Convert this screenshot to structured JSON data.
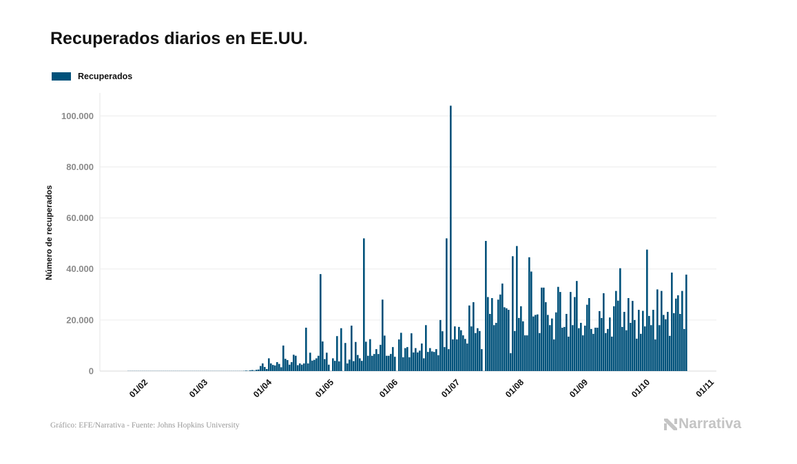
{
  "title": "Recuperados diarios en EE.UU.",
  "footer": "Gráfico: EFE/Narrativa - Fuente: Johns Hopkins University",
  "logo_text": "Narrativa",
  "chart_data": {
    "type": "bar",
    "title": "Recuperados diarios en EE.UU.",
    "xlabel": "",
    "ylabel": "Número de recuperados",
    "ylim": [
      0,
      109000
    ],
    "yticks": [
      0,
      20000,
      40000,
      60000,
      80000,
      100000
    ],
    "ytick_labels": [
      "0",
      "20.000",
      "40.000",
      "60.000",
      "80.000",
      "100.000"
    ],
    "xtick_labels": [
      "01/02",
      "01/03",
      "01/04",
      "01/05",
      "01/06",
      "01/07",
      "01/08",
      "01/09",
      "01/10",
      "01/11"
    ],
    "grid": true,
    "legend_position": "top-left",
    "color": "#00517a",
    "first_date": "22/01",
    "last_date": "18/10",
    "series": [
      {
        "name": "Recuperados",
        "values": [
          0,
          0,
          0,
          0,
          0,
          0,
          0,
          0,
          0,
          0,
          0,
          0,
          0,
          0,
          0,
          0,
          0,
          0,
          0,
          0,
          0,
          0,
          0,
          0,
          0,
          0,
          0,
          0,
          0,
          0,
          0,
          0,
          0,
          0,
          0,
          0,
          0,
          0,
          0,
          0,
          0,
          0,
          0,
          0,
          0,
          0,
          0,
          0,
          0,
          0,
          0,
          0,
          0,
          0,
          0,
          0,
          100,
          200,
          100,
          300,
          400,
          200,
          500,
          600,
          2000,
          3000,
          1600,
          800,
          5000,
          3000,
          2400,
          2200,
          3500,
          2800,
          1500,
          10000,
          4800,
          4300,
          2500,
          3500,
          6400,
          6000,
          2300,
          3000,
          2500,
          3000,
          17000,
          3000,
          7200,
          4100,
          4400,
          5000,
          6000,
          38000,
          11600,
          4700,
          7200,
          2500,
          0,
          5000,
          4000,
          13700,
          3800,
          16800,
          0,
          11000,
          3000,
          4500,
          17800,
          3900,
          11400,
          6300,
          5000,
          4000,
          52000,
          11500,
          6000,
          12500,
          6000,
          6700,
          8600,
          6700,
          10300,
          28000,
          13900,
          6000,
          6000,
          6700,
          9400,
          5600,
          0,
          12400,
          15000,
          5400,
          9000,
          9400,
          5400,
          14800,
          7300,
          9000,
          7300,
          8000,
          10800,
          5000,
          18000,
          7500,
          9000,
          7700,
          7500,
          8600,
          6200,
          20000,
          15600,
          9400,
          52000,
          8600,
          104000,
          12400,
          17500,
          12400,
          17300,
          16000,
          14000,
          12600,
          10800,
          25700,
          17500,
          27000,
          14900,
          16800,
          15700,
          8600,
          0,
          51000,
          29000,
          22400,
          28600,
          18000,
          18900,
          28000,
          30000,
          34300,
          25000,
          24600,
          24000,
          7000,
          45000,
          15700,
          49000,
          20800,
          25400,
          19500,
          14000,
          14000,
          44600,
          39000,
          21400,
          22000,
          22200,
          14900,
          32700,
          32700,
          27000,
          22000,
          18000,
          20600,
          12400,
          23000,
          33000,
          31000,
          17000,
          17300,
          22400,
          13500,
          31000,
          18000,
          29000,
          35300,
          16800,
          18900,
          14000,
          17800,
          26000,
          28600,
          16500,
          14600,
          17000,
          17000,
          23500,
          20800,
          30500,
          14900,
          16500,
          21000,
          13500,
          25400,
          31400,
          27600,
          40300,
          17300,
          23200,
          16000,
          28600,
          18900,
          27500,
          20000,
          12700,
          24000,
          14600,
          23600,
          17500,
          47600,
          21600,
          18000,
          24000,
          12400,
          32000,
          18000,
          31400,
          22000,
          20300,
          23200,
          13800,
          38600,
          22700,
          28400,
          29700,
          22400,
          31400,
          16500,
          37800
        ]
      }
    ]
  }
}
